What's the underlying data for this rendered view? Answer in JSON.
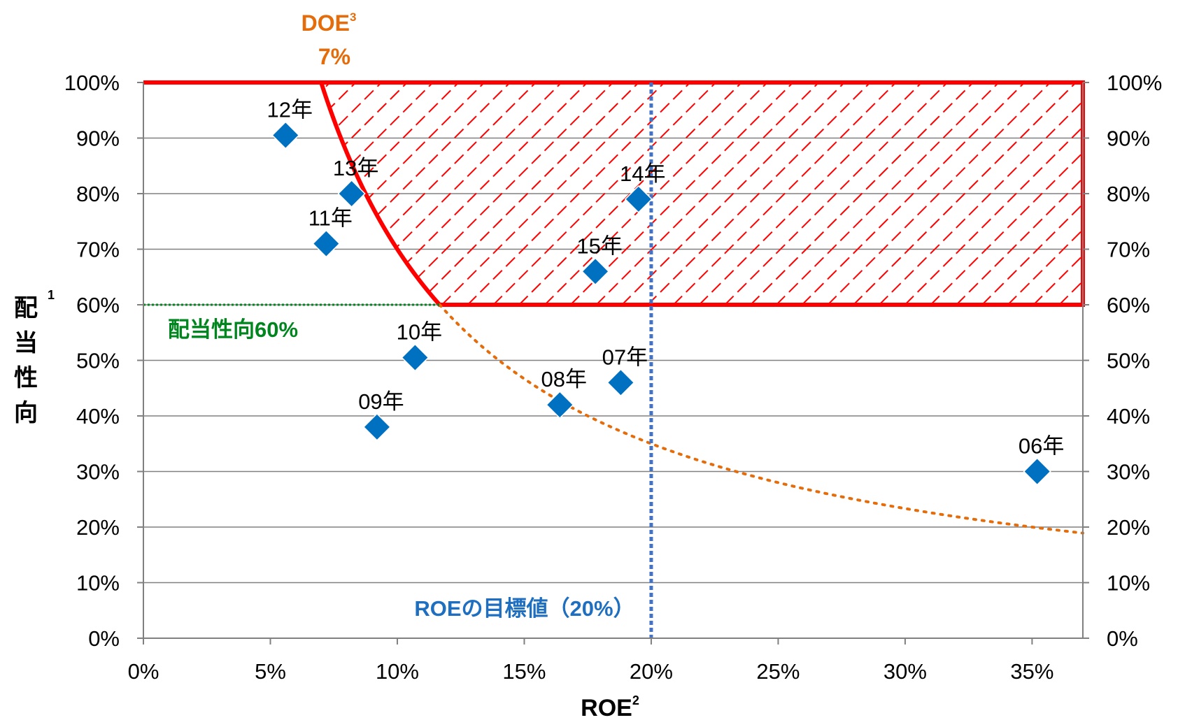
{
  "chart_data": {
    "type": "scatter",
    "title": "",
    "xlabel": "ROE",
    "xlabel_sup": "2",
    "ylabel": "配当性向",
    "ylabel_sup": "1",
    "xlim": [
      0,
      0.37
    ],
    "ylim": [
      0,
      1.0
    ],
    "x_ticks": [
      0,
      0.05,
      0.1,
      0.15,
      0.2,
      0.25,
      0.3,
      0.35
    ],
    "x_tick_labels": [
      "0%",
      "5%",
      "10%",
      "15%",
      "20%",
      "25%",
      "30%",
      "35%"
    ],
    "y_ticks": [
      0,
      0.1,
      0.2,
      0.3,
      0.4,
      0.5,
      0.6,
      0.7,
      0.8,
      0.9,
      1.0
    ],
    "y_tick_labels": [
      "0%",
      "10%",
      "20%",
      "30%",
      "40%",
      "50%",
      "60%",
      "70%",
      "80%",
      "90%",
      "100%"
    ],
    "grid": "horizontal",
    "secondary_y_axis": true,
    "points": [
      {
        "label": "06年",
        "x": 0.352,
        "y": 0.3
      },
      {
        "label": "07年",
        "x": 0.188,
        "y": 0.46
      },
      {
        "label": "08年",
        "x": 0.164,
        "y": 0.42
      },
      {
        "label": "09年",
        "x": 0.092,
        "y": 0.38
      },
      {
        "label": "10年",
        "x": 0.107,
        "y": 0.505
      },
      {
        "label": "11年",
        "x": 0.072,
        "y": 0.71
      },
      {
        "label": "12年",
        "x": 0.056,
        "y": 0.905
      },
      {
        "label": "13年",
        "x": 0.082,
        "y": 0.8
      },
      {
        "label": "14年",
        "x": 0.195,
        "y": 0.79
      },
      {
        "label": "15年",
        "x": 0.178,
        "y": 0.66
      }
    ],
    "doe_curve": {
      "doe": 0.07,
      "label": "DOE",
      "label_sup": "3",
      "value_label": "7%",
      "color": "#e46c0a"
    },
    "payout_line": {
      "y": 0.6,
      "label": "配当性向60%",
      "color": "#00851f"
    },
    "roe_target": {
      "x": 0.2,
      "label": "ROEの目標値（20%）",
      "color": "#4472c4"
    },
    "target_region": {
      "x_max": 0.37,
      "y_min": 0.6,
      "y_max": 1.0,
      "doe": 0.07,
      "color": "#ff0000"
    },
    "marker_color": "#0070c0"
  }
}
